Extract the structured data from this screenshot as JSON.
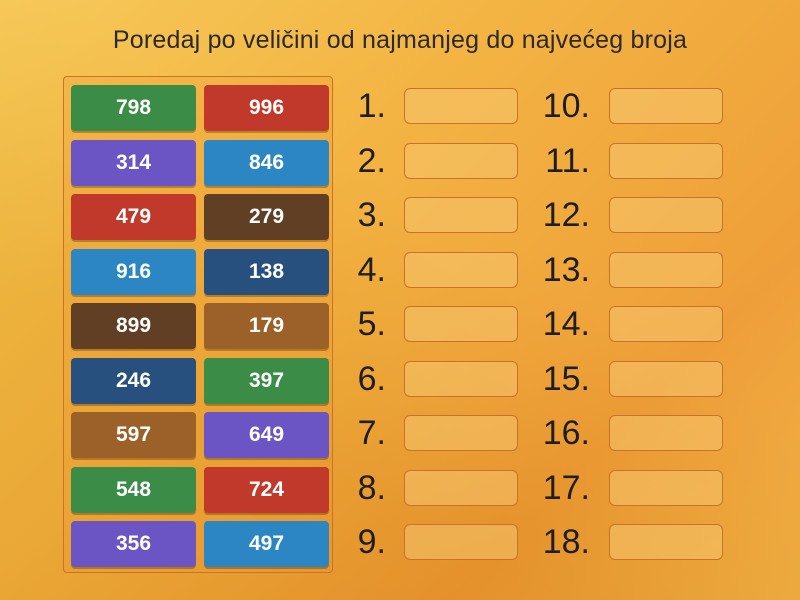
{
  "title": "Poredaj po veličini od najmanjeg do najvećeg broja",
  "colors": {
    "green": "#3a8c47",
    "red": "#c0392b",
    "purple": "#6b55c5",
    "blue": "#2d86c4",
    "dark_brown": "#603f25",
    "navy": "#27507f",
    "light_brown": "#9c6128"
  },
  "tiles": [
    {
      "value": "798",
      "color": "green"
    },
    {
      "value": "996",
      "color": "red"
    },
    {
      "value": "314",
      "color": "purple"
    },
    {
      "value": "846",
      "color": "blue"
    },
    {
      "value": "479",
      "color": "red"
    },
    {
      "value": "279",
      "color": "dark_brown"
    },
    {
      "value": "916",
      "color": "blue"
    },
    {
      "value": "138",
      "color": "navy"
    },
    {
      "value": "899",
      "color": "dark_brown"
    },
    {
      "value": "179",
      "color": "light_brown"
    },
    {
      "value": "246",
      "color": "navy"
    },
    {
      "value": "397",
      "color": "green"
    },
    {
      "value": "597",
      "color": "light_brown"
    },
    {
      "value": "649",
      "color": "purple"
    },
    {
      "value": "548",
      "color": "green"
    },
    {
      "value": "724",
      "color": "red"
    },
    {
      "value": "356",
      "color": "purple"
    },
    {
      "value": "497",
      "color": "blue"
    }
  ],
  "slots": [
    {
      "label": "1."
    },
    {
      "label": "2."
    },
    {
      "label": "3."
    },
    {
      "label": "4."
    },
    {
      "label": "5."
    },
    {
      "label": "6."
    },
    {
      "label": "7."
    },
    {
      "label": "8."
    },
    {
      "label": "9."
    },
    {
      "label": "10."
    },
    {
      "label": "11."
    },
    {
      "label": "12."
    },
    {
      "label": "13."
    },
    {
      "label": "14."
    },
    {
      "label": "15."
    },
    {
      "label": "16."
    },
    {
      "label": "17."
    },
    {
      "label": "18."
    }
  ]
}
